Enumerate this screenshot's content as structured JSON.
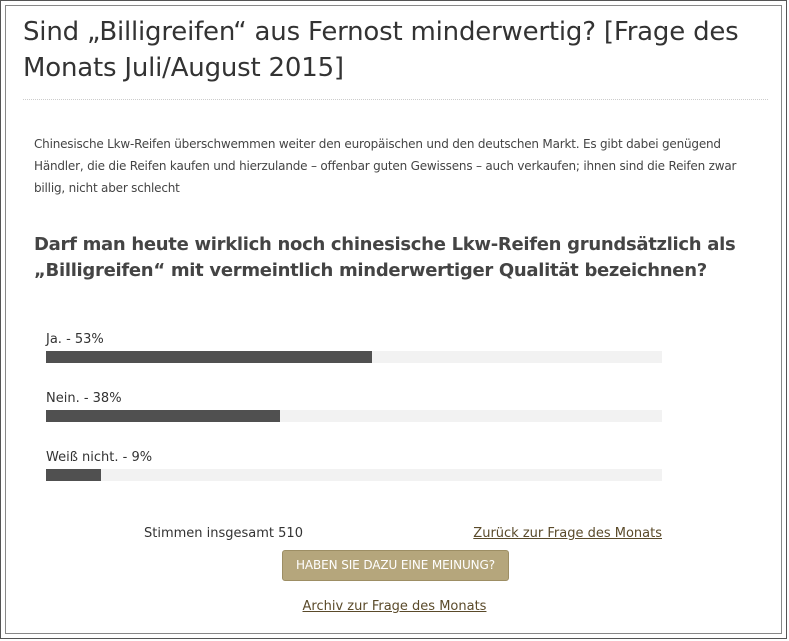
{
  "poll": {
    "title": "Sind „Billigreifen“ aus Fernost minderwertig? [Frage des Monats Juli/August 2015]",
    "intro": "Chinesische Lkw-Reifen überschwemmen weiter den europäischen und den deutschen Markt. Es gibt dabei genügend Händler, die die Reifen kaufen und hierzulande – offenbar guten Gewissens – auch verkaufen; ihnen sind die Reifen zwar billig, nicht aber schlecht",
    "question": "Darf man heute wirklich noch chinesische Lkw-Reifen grundsätzlich als „Billigreifen“ mit vermeintlich minderwertiger Qualität bezeichnen?",
    "answers": [
      {
        "label": "Ja. - 53%",
        "percent": 53
      },
      {
        "label": "Nein. - 38%",
        "percent": 38
      },
      {
        "label": "Weiß nicht. - 9%",
        "percent": 9
      }
    ],
    "total_votes": "Stimmen insgesamt 510",
    "back_link": "Zurück zur Frage des Monats",
    "opinion_button": "HABEN SIE DAZU EINE MEINUNG?",
    "archive_link": "Archiv zur Frage des Monats"
  },
  "colors": {
    "bar_fill": "#505050",
    "bar_track": "#f2f2f2",
    "button_bg": "#b5a67c",
    "link": "#5a4a2a"
  }
}
